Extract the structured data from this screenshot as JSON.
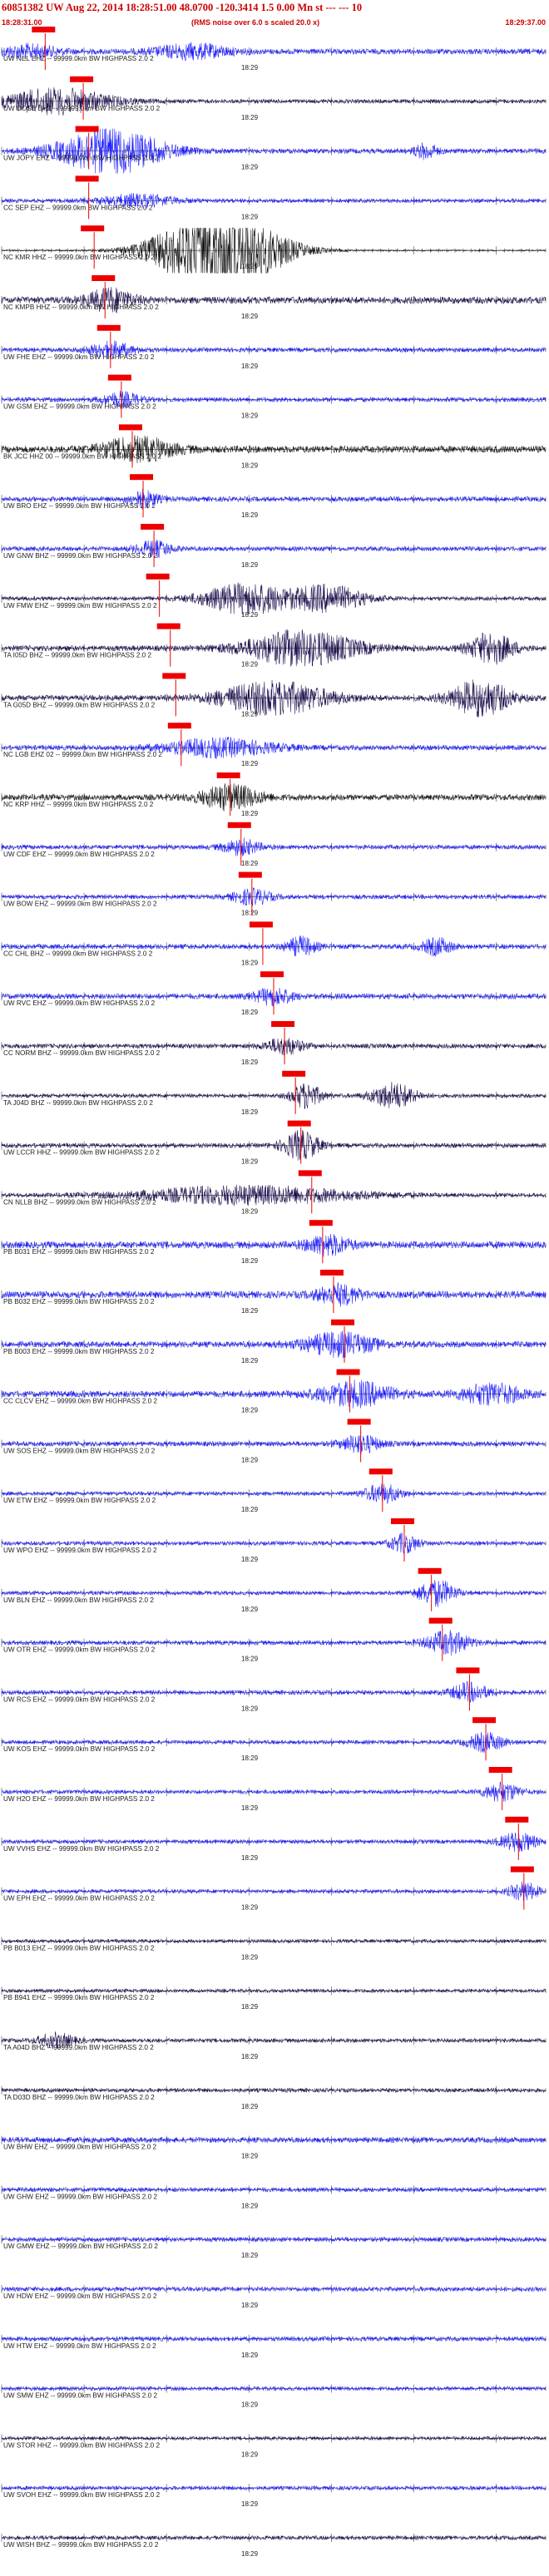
{
  "header": {
    "title": "60851382 UW Aug 22, 2014 18:28:51.00    48.0700 -120.3414  1.5 0.00 Mn st --- --- 10",
    "start_time": "18:28:31.00",
    "scale_note": "(RMS noise over 6.0 s scaled 20.0 x)",
    "end_time": "18:29:37.00"
  },
  "colors": {
    "trace_blue": "#1a1aff",
    "trace_navy": "#1a0a4a",
    "trace_black": "#111111",
    "pick_red": "#ee0000",
    "baseline": "#444444",
    "label": "#222222"
  },
  "chart_data": {
    "type": "seismogram",
    "x_start": "18:28:31.00",
    "x_end": "18:29:37.00",
    "tick_label": "18:29",
    "channel_suffix": " -- 99999.0km BW  HIGHPASS  2.0  2",
    "traces": [
      {
        "name": "UW NEL EHZ",
        "color": "blue",
        "amp": 0.55,
        "bursts": [
          [
            0.05,
            0.08,
            1.2
          ],
          [
            0.35,
            0.1,
            1.4
          ]
        ],
        "pick": 0.08
      },
      {
        "name": "UW DOSE BHZ",
        "color": "navy",
        "amp": 0.4,
        "bursts": [
          [
            0.1,
            0.15,
            2.5
          ]
        ],
        "pick": 0.15
      },
      {
        "name": "UW JOPY EHZ",
        "color": "blue",
        "amp": 0.5,
        "bursts": [
          [
            0.2,
            0.14,
            4.5
          ],
          [
            0.78,
            0.03,
            1.5
          ]
        ],
        "pick": 0.16
      },
      {
        "name": "CC SEP EHZ",
        "color": "blue",
        "amp": 0.4,
        "bursts": [
          [
            0.25,
            0.1,
            1.2
          ]
        ],
        "pick": 0.16
      },
      {
        "name": "NC KMR HHZ",
        "color": "black",
        "amp": 0.15,
        "bursts": [
          [
            0.4,
            0.16,
            10
          ]
        ],
        "pick": 0.17
      },
      {
        "name": "NC KMPB HHZ",
        "color": "navy",
        "amp": 0.7,
        "bursts": [
          [
            0.2,
            0.06,
            2.2
          ]
        ],
        "pick": 0.19
      },
      {
        "name": "UW FHE EHZ",
        "color": "blue",
        "amp": 0.45,
        "bursts": [
          [
            0.2,
            0.06,
            1.5
          ]
        ],
        "pick": 0.2
      },
      {
        "name": "UW GSM EHZ",
        "color": "blue",
        "amp": 0.45,
        "bursts": [
          [
            0.22,
            0.05,
            1.4
          ]
        ],
        "pick": 0.22
      },
      {
        "name": "BK JCC HHZ 00",
        "color": "black",
        "amp": 0.7,
        "bursts": [
          [
            0.25,
            0.1,
            2.2
          ]
        ],
        "pick": 0.24
      },
      {
        "name": "UW BRO EHZ",
        "color": "blue",
        "amp": 0.5,
        "bursts": [
          [
            0.26,
            0.04,
            1.6
          ]
        ],
        "pick": 0.26
      },
      {
        "name": "UW GNW BHZ",
        "color": "blue",
        "amp": 0.45,
        "bursts": [
          [
            0.28,
            0.05,
            1.5
          ]
        ],
        "pick": 0.28
      },
      {
        "name": "UW FMW EHZ",
        "color": "navy",
        "amp": 0.4,
        "bursts": [
          [
            0.45,
            0.12,
            3
          ],
          [
            0.6,
            0.1,
            2.5
          ]
        ],
        "pick": 0.29
      },
      {
        "name": "TA I05D BHZ",
        "color": "navy",
        "amp": 0.55,
        "bursts": [
          [
            0.55,
            0.15,
            3.5
          ],
          [
            0.9,
            0.06,
            3
          ]
        ],
        "pick": 0.31
      },
      {
        "name": "TA G05D BHZ",
        "color": "navy",
        "amp": 0.55,
        "bursts": [
          [
            0.5,
            0.15,
            3.2
          ],
          [
            0.88,
            0.08,
            3.5
          ]
        ],
        "pick": 0.32
      },
      {
        "name": "NC LGB EHZ 02",
        "color": "blue",
        "amp": 0.5,
        "bursts": [
          [
            0.4,
            0.15,
            1.7
          ]
        ],
        "pick": 0.33
      },
      {
        "name": "NC KRP HHZ",
        "color": "black",
        "amp": 0.6,
        "bursts": [
          [
            0.42,
            0.08,
            2.4
          ]
        ],
        "pick": 0.42
      },
      {
        "name": "UW CDF EHZ",
        "color": "blue",
        "amp": 0.45,
        "bursts": [
          [
            0.44,
            0.05,
            1.5
          ]
        ],
        "pick": 0.44
      },
      {
        "name": "UW BOW EHZ",
        "color": "blue",
        "amp": 0.45,
        "bursts": [
          [
            0.46,
            0.05,
            1.5
          ]
        ],
        "pick": 0.46
      },
      {
        "name": "CC CHL BHZ",
        "color": "blue",
        "amp": 0.5,
        "bursts": [
          [
            0.55,
            0.04,
            1.8
          ],
          [
            0.8,
            0.04,
            1.6
          ]
        ],
        "pick": 0.48
      },
      {
        "name": "UW RVC EHZ",
        "color": "blue",
        "amp": 0.55,
        "bursts": [
          [
            0.5,
            0.05,
            1.6
          ]
        ],
        "pick": 0.5
      },
      {
        "name": "CC NORM BHZ",
        "color": "navy",
        "amp": 0.45,
        "bursts": [
          [
            0.52,
            0.05,
            1.6
          ]
        ],
        "pick": 0.52
      },
      {
        "name": "TA J04D BHZ",
        "color": "navy",
        "amp": 0.4,
        "bursts": [
          [
            0.56,
            0.04,
            2.5
          ],
          [
            0.72,
            0.06,
            2.5
          ]
        ],
        "pick": 0.54
      },
      {
        "name": "UW LCCR HHZ",
        "color": "navy",
        "amp": 0.45,
        "bursts": [
          [
            0.55,
            0.05,
            2.8
          ]
        ],
        "pick": 0.55
      },
      {
        "name": "CN NLLB BHZ",
        "color": "navy",
        "amp": 0.4,
        "bursts": [
          [
            0.45,
            0.3,
            1.8
          ]
        ],
        "pick": 0.57
      },
      {
        "name": "PB B031 EHZ",
        "color": "blue",
        "amp": 0.7,
        "bursts": [
          [
            0.6,
            0.06,
            1.8
          ]
        ],
        "pick": 0.59
      },
      {
        "name": "PB B032 EHZ",
        "color": "blue",
        "amp": 0.7,
        "bursts": [
          [
            0.62,
            0.06,
            1.8
          ]
        ],
        "pick": 0.61
      },
      {
        "name": "PB B003 EHZ",
        "color": "blue",
        "amp": 0.6,
        "bursts": [
          [
            0.62,
            0.1,
            2.2
          ]
        ],
        "pick": 0.63
      },
      {
        "name": "CC CLCV EHZ",
        "color": "blue",
        "amp": 0.65,
        "bursts": [
          [
            0.65,
            0.1,
            2.3
          ],
          [
            0.9,
            0.08,
            2
          ]
        ],
        "pick": 0.64
      },
      {
        "name": "UW SOS EHZ",
        "color": "blue",
        "amp": 0.5,
        "bursts": [
          [
            0.66,
            0.05,
            1.8
          ]
        ],
        "pick": 0.66
      },
      {
        "name": "UW ETW EHZ",
        "color": "blue",
        "amp": 0.4,
        "bursts": [
          [
            0.7,
            0.05,
            1.8
          ]
        ],
        "pick": 0.7
      },
      {
        "name": "UW WPO EHZ",
        "color": "blue",
        "amp": 0.4,
        "bursts": [
          [
            0.74,
            0.04,
            1.8
          ]
        ],
        "pick": 0.74
      },
      {
        "name": "UW BLN EHZ",
        "color": "blue",
        "amp": 0.4,
        "bursts": [
          [
            0.8,
            0.05,
            2.5
          ]
        ],
        "pick": 0.79
      },
      {
        "name": "UW OTR EHZ",
        "color": "blue",
        "amp": 0.45,
        "bursts": [
          [
            0.82,
            0.06,
            2.2
          ]
        ],
        "pick": 0.81
      },
      {
        "name": "UW RCS EHZ",
        "color": "blue",
        "amp": 0.45,
        "bursts": [
          [
            0.86,
            0.05,
            1.8
          ]
        ],
        "pick": 0.86
      },
      {
        "name": "UW KOS EHZ",
        "color": "blue",
        "amp": 0.4,
        "bursts": [
          [
            0.89,
            0.05,
            1.8
          ]
        ],
        "pick": 0.89
      },
      {
        "name": "UW H2O EHZ",
        "color": "blue",
        "amp": 0.4,
        "bursts": [
          [
            0.92,
            0.05,
            1.8
          ]
        ],
        "pick": 0.92
      },
      {
        "name": "UW VVHS EHZ",
        "color": "blue",
        "amp": 0.4,
        "bursts": [
          [
            0.95,
            0.05,
            1.8
          ]
        ],
        "pick": 0.95
      },
      {
        "name": "UW EPH EHZ",
        "color": "blue",
        "amp": 0.4,
        "bursts": [
          [
            0.96,
            0.04,
            1.8
          ]
        ],
        "pick": 0.96
      },
      {
        "name": "PB B013 EHZ",
        "color": "navy",
        "amp": 0.35,
        "bursts": [],
        "pick": null
      },
      {
        "name": "PB B941 EHZ",
        "color": "navy",
        "amp": 0.35,
        "bursts": [],
        "pick": null
      },
      {
        "name": "TA A04D BHZ",
        "color": "navy",
        "amp": 0.4,
        "bursts": [
          [
            0.1,
            0.05,
            1.4
          ]
        ],
        "pick": null
      },
      {
        "name": "TA D03D BHZ",
        "color": "navy",
        "amp": 0.4,
        "bursts": [],
        "pick": null
      },
      {
        "name": "UW BHW EHZ",
        "color": "blue",
        "amp": 0.55,
        "bursts": [],
        "pick": null
      },
      {
        "name": "UW GHW EHZ",
        "color": "blue",
        "amp": 0.45,
        "bursts": [],
        "pick": null
      },
      {
        "name": "UW GMW EHZ",
        "color": "blue",
        "amp": 0.45,
        "bursts": [],
        "pick": null
      },
      {
        "name": "UW HDW EHZ",
        "color": "blue",
        "amp": 0.45,
        "bursts": [],
        "pick": null
      },
      {
        "name": "UW HTW EHZ",
        "color": "blue",
        "amp": 0.45,
        "bursts": [],
        "pick": null
      },
      {
        "name": "UW SMW EHZ",
        "color": "blue",
        "amp": 0.4,
        "bursts": [],
        "pick": null
      },
      {
        "name": "UW STOR HHZ",
        "color": "navy",
        "amp": 0.35,
        "bursts": [],
        "pick": null
      },
      {
        "name": "UW SVOH EHZ",
        "color": "blue",
        "amp": 0.4,
        "bursts": [],
        "pick": null
      },
      {
        "name": "UW WISH BHZ",
        "color": "navy",
        "amp": 0.4,
        "bursts": [],
        "pick": null
      }
    ]
  }
}
